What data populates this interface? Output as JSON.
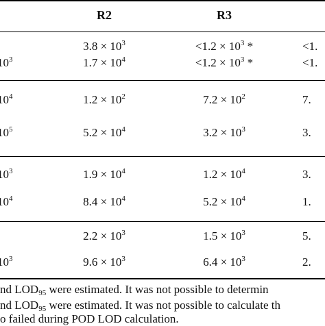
{
  "table": {
    "headers": [
      "R2",
      "R3"
    ],
    "groups": [
      {
        "rows": [
          {
            "left_exp": "",
            "r2": {
              "mant": "3.8 × 10",
              "exp": "3",
              "suffix": ""
            },
            "r3": {
              "mant": "<1.2 × 10",
              "exp": "3",
              "suffix": " *"
            },
            "r4": "<1."
          },
          {
            "left_exp": "3",
            "r2": {
              "mant": "1.7 × 10",
              "exp": "4",
              "suffix": ""
            },
            "r3": {
              "mant": "<1.2 × 10",
              "exp": "3",
              "suffix": " *"
            },
            "r4": "<1."
          }
        ]
      },
      {
        "rows": [
          {
            "left_exp": "4",
            "r2": {
              "mant": "1.2 × 10",
              "exp": "2",
              "suffix": ""
            },
            "r3": {
              "mant": "7.2 × 10",
              "exp": "2",
              "suffix": ""
            },
            "r4": "7."
          },
          {
            "left_exp": "5",
            "r2": {
              "mant": "5.2 × 10",
              "exp": "4",
              "suffix": ""
            },
            "r3": {
              "mant": "3.2 × 10",
              "exp": "3",
              "suffix": ""
            },
            "r4": "3."
          }
        ]
      },
      {
        "rows": [
          {
            "left_exp": "3",
            "r2": {
              "mant": "1.9 × 10",
              "exp": "4",
              "suffix": ""
            },
            "r3": {
              "mant": "1.2 × 10",
              "exp": "4",
              "suffix": ""
            },
            "r4": "3."
          },
          {
            "left_exp": "4",
            "r2": {
              "mant": "8.4 × 10",
              "exp": "4",
              "suffix": ""
            },
            "r3": {
              "mant": "5.2 × 10",
              "exp": "4",
              "suffix": ""
            },
            "r4": "1."
          }
        ]
      },
      {
        "rows": [
          {
            "left_exp": "",
            "r2": {
              "mant": "2.2 × 10",
              "exp": "3",
              "suffix": ""
            },
            "r3": {
              "mant": "1.5 × 10",
              "exp": "3",
              "suffix": ""
            },
            "r4": "5."
          },
          {
            "left_exp": "3",
            "r2": {
              "mant": "9.6 × 10",
              "exp": "3",
              "suffix": ""
            },
            "r3": {
              "mant": "6.4 × 10",
              "exp": "3",
              "suffix": ""
            },
            "r4": "2."
          }
        ]
      }
    ]
  },
  "footnotes": [
    {
      "pre": "nd LOD",
      "sub": "95",
      "post": " were estimated. It was not possible to determin"
    },
    {
      "pre": "nd LOD",
      "sub": "95",
      "post": " were estimated. It was not possible to calculate th"
    },
    {
      "pre": "o failed during POD LOD calculation.",
      "sub": "",
      "post": ""
    }
  ]
}
